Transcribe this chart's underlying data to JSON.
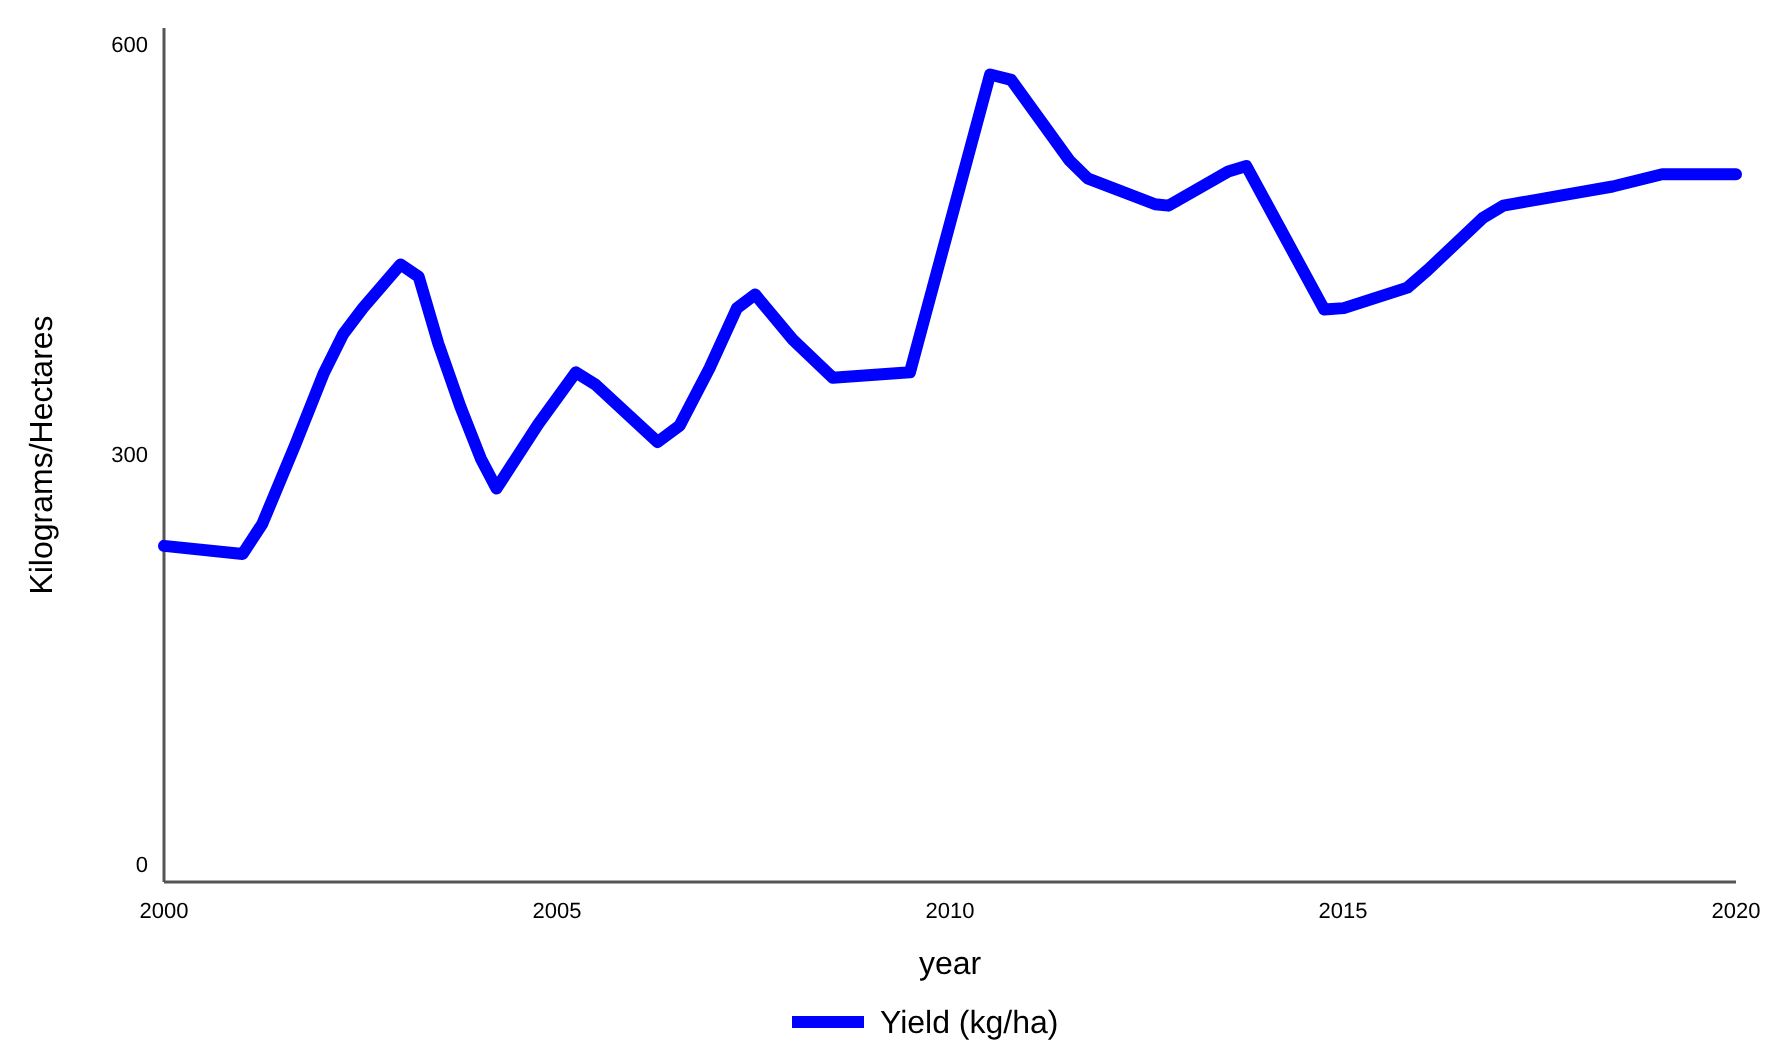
{
  "chart_data": {
    "type": "line",
    "xlabel": "year",
    "ylabel": "Kilograms/Hectares",
    "x": [
      2000,
      2001,
      2001.25,
      2001.67,
      2002.03,
      2002.28,
      2002.53,
      2003.01,
      2003.24,
      2003.49,
      2003.77,
      2004.03,
      2004.23,
      2004.76,
      2005.24,
      2005.49,
      2006.28,
      2006.56,
      2006.94,
      2007.29,
      2007.52,
      2008,
      2008.51,
      2009.49,
      2010.51,
      2010.78,
      2011.52,
      2011.75,
      2012.61,
      2012.78,
      2013.54,
      2013.77,
      2014.76,
      2015.01,
      2015.82,
      2016.08,
      2016.78,
      2017.04,
      2018.43,
      2019.06,
      2020
    ],
    "series": [
      {
        "name": "Yield (kg/ha)",
        "color": "#0000ff",
        "values": [
          233,
          227,
          249,
          307,
          359,
          388,
          407,
          439,
          430,
          381,
          335,
          297,
          275,
          322,
          360,
          351,
          309,
          321,
          363,
          407,
          417,
          384,
          356,
          360,
          578,
          574,
          515,
          502,
          483,
          482,
          507,
          511,
          406,
          407,
          422,
          435,
          473,
          482,
          496,
          505,
          505
        ]
      }
    ],
    "xlim": [
      2000,
      2020
    ],
    "xticks": [
      2000,
      2005,
      2010,
      2015,
      2020
    ],
    "ylim": [
      -13,
      612
    ],
    "yticks": [
      0,
      300,
      600
    ],
    "grid": false,
    "legend": "bottom",
    "marker": "none",
    "line_style": "solid"
  }
}
